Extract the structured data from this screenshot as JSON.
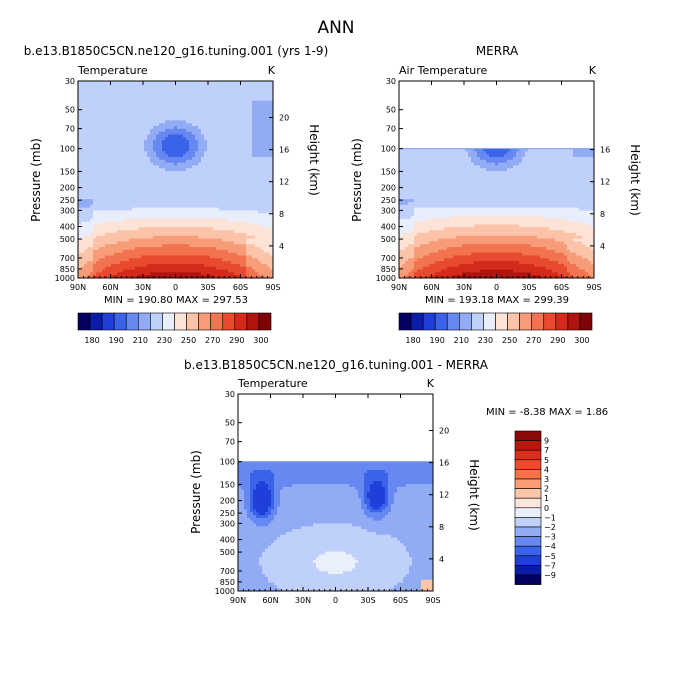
{
  "figure": {
    "title": "ANN",
    "font_color": "#000000"
  },
  "chart_data": [
    {
      "type": "heatmap",
      "panel": "model",
      "title": "b.e13.B1850C5CN.ne120_g16.tuning.001 (yrs 1-9)",
      "subtitle_left": "Temperature",
      "subtitle_right": "K",
      "ylabel": "Pressure (mb)",
      "ylabel_right": "Height (km)",
      "x_ticks": [
        "90N",
        "60N",
        "30N",
        "0",
        "30S",
        "60S",
        "90S"
      ],
      "y_ticks": [
        "30",
        "50",
        "70",
        "100",
        "150",
        "200",
        "250",
        "300",
        "400",
        "500",
        "700",
        "850",
        "1000"
      ],
      "height_ticks": [
        "20",
        "16",
        "12",
        "8",
        "4"
      ],
      "min_max_text": "MIN = 190.80   MAX = 297.53",
      "colorbar_labels": [
        "180",
        "190",
        "210",
        "230",
        "250",
        "270",
        "290",
        "300"
      ],
      "missing_above_mb": null
    },
    {
      "type": "heatmap",
      "panel": "obs",
      "title": "MERRA",
      "subtitle_left": "Air Temperature",
      "subtitle_right": "K",
      "ylabel": "Pressure (mb)",
      "ylabel_right": "Height (km)",
      "x_ticks": [
        "90N",
        "60N",
        "30N",
        "0",
        "30S",
        "60S",
        "90S"
      ],
      "y_ticks": [
        "30",
        "50",
        "70",
        "100",
        "150",
        "200",
        "250",
        "300",
        "400",
        "500",
        "700",
        "850",
        "1000"
      ],
      "height_ticks": [
        "16",
        "12",
        "8",
        "4"
      ],
      "min_max_text": "MIN = 193.18   MAX = 299.39",
      "colorbar_labels": [
        "180",
        "190",
        "210",
        "230",
        "250",
        "270",
        "290",
        "300"
      ],
      "missing_above_mb": 100
    },
    {
      "type": "heatmap",
      "panel": "diff",
      "title": "b.e13.B1850C5CN.ne120_g16.tuning.001 - MERRA",
      "subtitle_left": "Temperature",
      "subtitle_right": "K",
      "ylabel": "Pressure (mb)",
      "ylabel_right": "Height (km)",
      "x_ticks": [
        "90N",
        "60N",
        "30N",
        "0",
        "30S",
        "60S",
        "90S"
      ],
      "y_ticks": [
        "30",
        "50",
        "70",
        "100",
        "150",
        "200",
        "250",
        "300",
        "400",
        "500",
        "700",
        "850",
        "1000"
      ],
      "height_ticks": [
        "20",
        "16",
        "12",
        "8",
        "4"
      ],
      "min_max_text": "MIN =   -8.38   MAX =    1.86",
      "colorbar_labels": [
        "9",
        "7",
        "5",
        "4",
        "3",
        "2",
        "1",
        "0",
        "-1",
        "-2",
        "-3",
        "-4",
        "-5",
        "-7",
        "-9"
      ],
      "missing_above_mb": 100
    }
  ],
  "colors": {
    "abs_scale": [
      "#02015f",
      "#0a1ca8",
      "#1f3fd8",
      "#3a63ea",
      "#6689f1",
      "#91acf5",
      "#bfd0fa",
      "#e8eefb",
      "#fde3d5",
      "#fbc3a8",
      "#f79c78",
      "#f2734f",
      "#e84a30",
      "#d32a19",
      "#b0140e",
      "#7d0306"
    ],
    "diff_scale_top_to_bottom": [
      "#8c0a08",
      "#b8170e",
      "#dc2c1a",
      "#ee4a2c",
      "#f77248",
      "#fa9b73",
      "#fcc6a9",
      "#fde6d9",
      "#eaf0fb",
      "#bfd0fa",
      "#91acf5",
      "#6689f1",
      "#3a63ea",
      "#1f3fd8",
      "#0a1ca8",
      "#02015f"
    ]
  }
}
